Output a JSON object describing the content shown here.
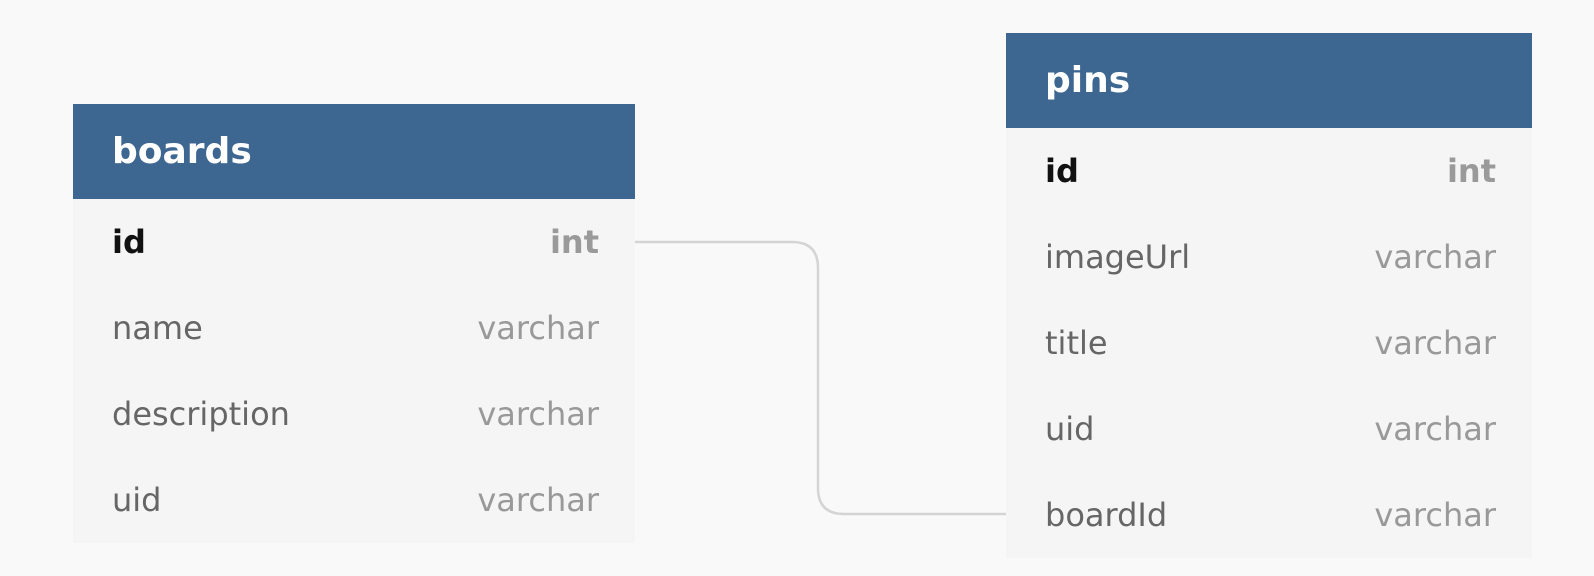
{
  "tables": {
    "boards": {
      "name": "boards",
      "fields": [
        {
          "name": "id",
          "type": "int",
          "primary": true
        },
        {
          "name": "name",
          "type": "varchar"
        },
        {
          "name": "description",
          "type": "varchar"
        },
        {
          "name": "uid",
          "type": "varchar"
        }
      ]
    },
    "pins": {
      "name": "pins",
      "fields": [
        {
          "name": "id",
          "type": "int",
          "primary": true
        },
        {
          "name": "imageUrl",
          "type": "varchar"
        },
        {
          "name": "title",
          "type": "varchar"
        },
        {
          "name": "uid",
          "type": "varchar"
        },
        {
          "name": "boardId",
          "type": "varchar"
        }
      ]
    }
  },
  "relations": [
    {
      "from": "boards.id",
      "to": "pins.boardId"
    }
  ],
  "colors": {
    "background": "#f9f9f9",
    "header": "#3d6690",
    "header_text": "#ffffff",
    "table_body": "#f5f5f5",
    "field_name": "#666666",
    "field_type": "#999999",
    "primary_key": "#111111",
    "connector": "#d4d4d4"
  }
}
